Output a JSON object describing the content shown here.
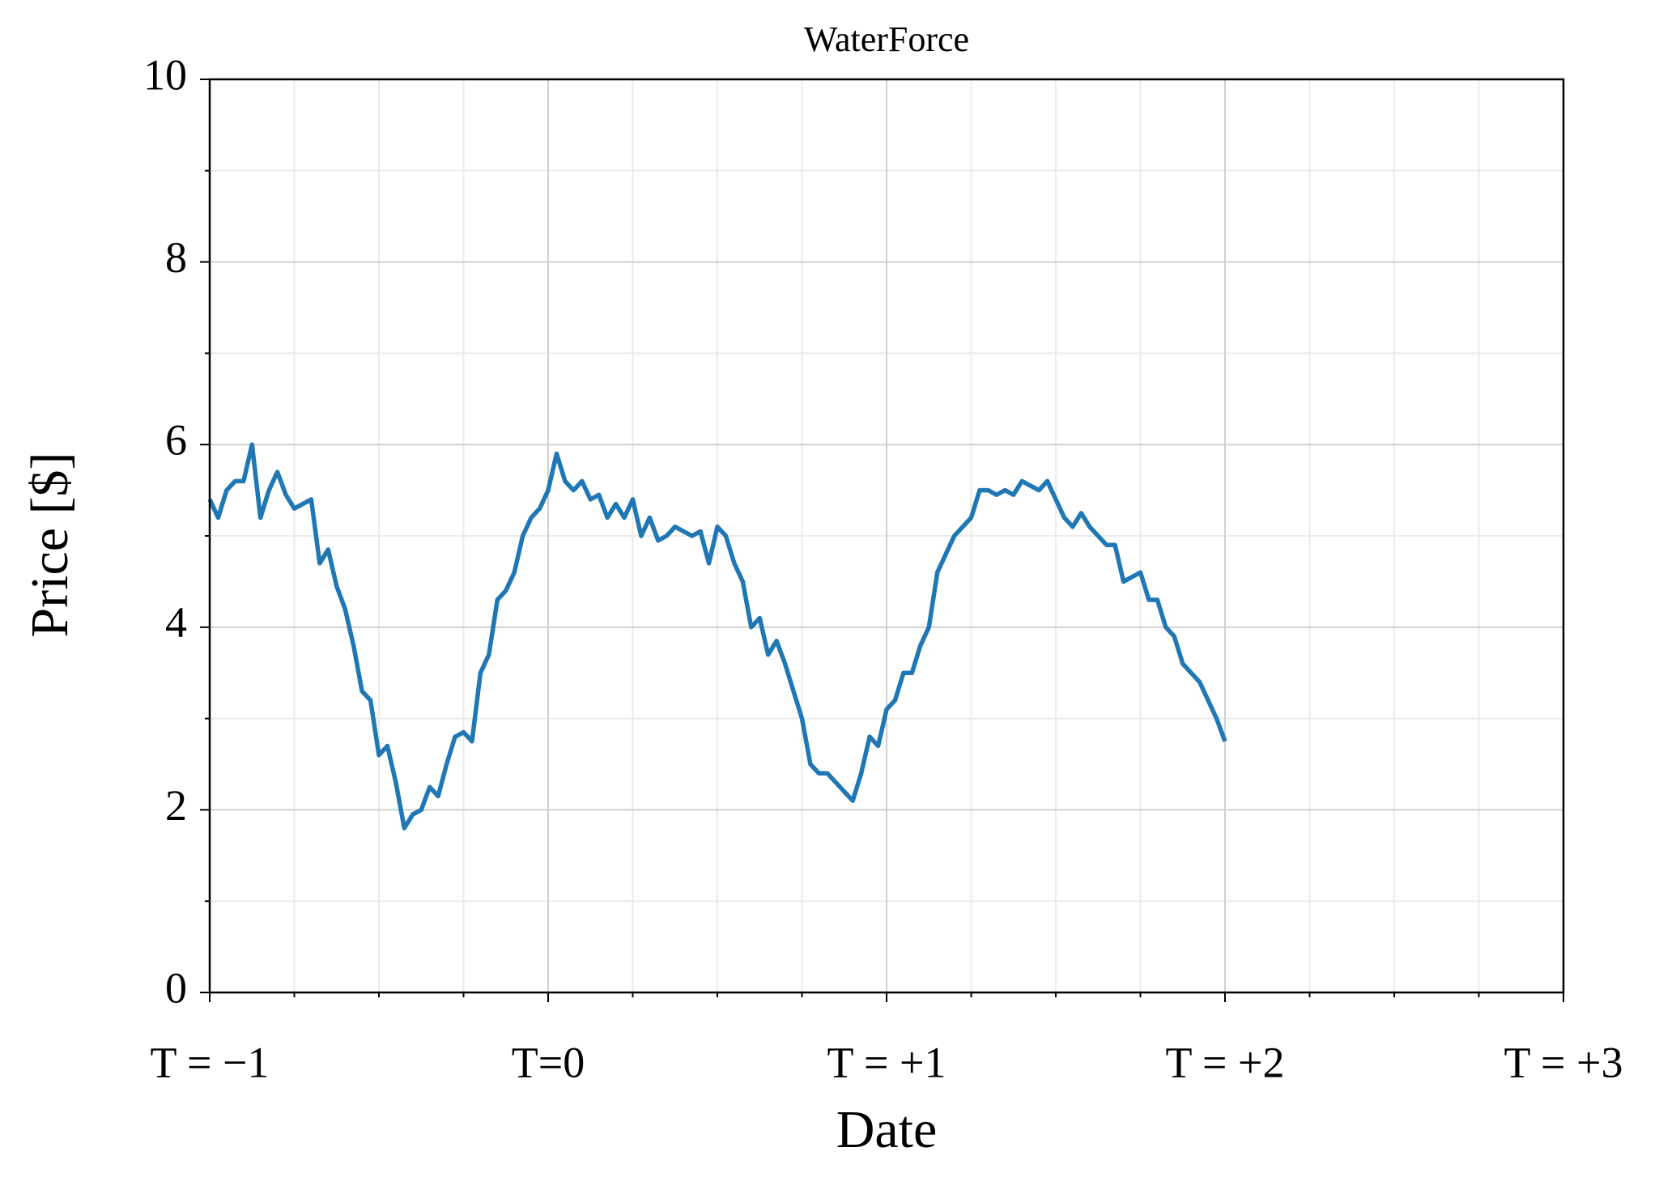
{
  "chart_data": {
    "type": "line",
    "title": "WaterForce",
    "xlabel": "Date",
    "ylabel": "Price [$]",
    "x": [
      -1,
      -0.975,
      -0.95,
      -0.925,
      -0.9,
      -0.875,
      -0.85,
      -0.825,
      -0.8,
      -0.775,
      -0.75,
      -0.725,
      -0.7,
      -0.675,
      -0.65,
      -0.625,
      -0.6,
      -0.575,
      -0.55,
      -0.525,
      -0.5,
      -0.475,
      -0.45,
      -0.425,
      -0.4,
      -0.375,
      -0.35,
      -0.325,
      -0.3,
      -0.275,
      -0.25,
      -0.225,
      -0.2,
      -0.175,
      -0.15,
      -0.125,
      -0.1,
      -0.075,
      -0.05,
      -0.025,
      0,
      0.025,
      0.05,
      0.075,
      0.1,
      0.125,
      0.15,
      0.175,
      0.2,
      0.225,
      0.25,
      0.275,
      0.3,
      0.325,
      0.35,
      0.375,
      0.4,
      0.425,
      0.45,
      0.475,
      0.5,
      0.525,
      0.55,
      0.575,
      0.6,
      0.625,
      0.65,
      0.675,
      0.7,
      0.725,
      0.75,
      0.775,
      0.8,
      0.825,
      0.85,
      0.875,
      0.9,
      0.925,
      0.95,
      0.975,
      1,
      1.025,
      1.05,
      1.075,
      1.1,
      1.125,
      1.15,
      1.175,
      1.2,
      1.225,
      1.25,
      1.275,
      1.3,
      1.325,
      1.35,
      1.375,
      1.4,
      1.425,
      1.45,
      1.475,
      1.5,
      1.525,
      1.55,
      1.575,
      1.6,
      1.625,
      1.65,
      1.675,
      1.7,
      1.725,
      1.75,
      1.775,
      1.8,
      1.825,
      1.85,
      1.875,
      1.9,
      1.925,
      1.95,
      1.975,
      2
    ],
    "series": [
      {
        "name": "WaterForce",
        "color": "#1f77b4",
        "values": [
          5.4,
          5.2,
          5.5,
          5.6,
          5.6,
          6.0,
          5.2,
          5.5,
          5.7,
          5.45,
          5.3,
          5.35,
          5.4,
          4.7,
          4.85,
          4.45,
          4.2,
          3.8,
          3.3,
          3.2,
          2.6,
          2.7,
          2.3,
          1.8,
          1.95,
          2.0,
          2.25,
          2.15,
          2.5,
          2.8,
          2.85,
          2.75,
          3.5,
          3.7,
          4.3,
          4.4,
          4.6,
          5.0,
          5.2,
          5.3,
          5.5,
          5.9,
          5.6,
          5.5,
          5.6,
          5.4,
          5.45,
          5.2,
          5.35,
          5.2,
          5.4,
          5.0,
          5.2,
          4.95,
          5.0,
          5.1,
          5.05,
          5.0,
          5.05,
          4.7,
          5.1,
          5.0,
          4.7,
          4.5,
          4.0,
          4.1,
          3.7,
          3.85,
          3.6,
          3.3,
          3.0,
          2.5,
          2.4,
          2.4,
          2.3,
          2.2,
          2.1,
          2.4,
          2.8,
          2.7,
          3.1,
          3.2,
          3.5,
          3.5,
          3.8,
          4.0,
          4.6,
          4.8,
          5.0,
          5.1,
          5.2,
          5.5,
          5.5,
          5.45,
          5.5,
          5.45,
          5.6,
          5.55,
          5.5,
          5.6,
          5.4,
          5.2,
          5.1,
          5.25,
          5.1,
          5.0,
          4.9,
          4.9,
          4.5,
          4.55,
          4.6,
          4.3,
          4.3,
          4.0,
          3.9,
          3.6,
          3.5,
          3.4,
          3.2,
          3.0,
          2.75
        ]
      }
    ],
    "xlim": [
      -1,
      3
    ],
    "xticks": [
      {
        "value": -1,
        "label": "T = −1"
      },
      {
        "value": 0,
        "label": "T=0"
      },
      {
        "value": 1,
        "label": "T = +1"
      },
      {
        "value": 2,
        "label": "T = +2"
      },
      {
        "value": 3,
        "label": "T = +3"
      }
    ],
    "xminorticks": [
      -0.75,
      -0.5,
      -0.25,
      0.25,
      0.5,
      0.75,
      1.25,
      1.5,
      1.75,
      2.25,
      2.5,
      2.75
    ],
    "ylim": [
      0,
      10
    ],
    "yticks": [
      0,
      2,
      4,
      6,
      8,
      10
    ],
    "yminorticks": [
      1,
      3,
      5,
      7,
      9
    ],
    "grid": true
  }
}
